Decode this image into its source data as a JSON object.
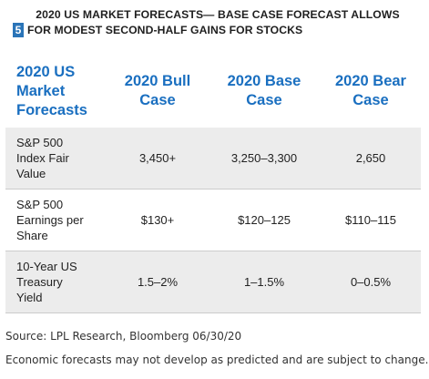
{
  "header": {
    "line1": "2020 US MARKET FORECASTS— BASE CASE FORECAST ALLOWS",
    "figure_number": "5",
    "line2": "FOR MODEST SECOND-HALF GAINS FOR STOCKS"
  },
  "table": {
    "headers": [
      "2020 US\nMarket\nForecasts",
      "2020 Bull\nCase",
      "2020 Base\nCase",
      "2020 Bear\nCase"
    ],
    "rows": [
      {
        "label": "S&P 500\nIndex Fair\nValue",
        "bull": "3,450+",
        "base": "3,250–3,300",
        "bear": "2,650"
      },
      {
        "label": "S&P 500\nEarnings per\nShare",
        "bull": "$130+",
        "base": "$120–125",
        "bear": "$110–115"
      },
      {
        "label": "10-Year US\nTreasury\nYield",
        "bull": "1.5–2%",
        "base": "1–1.5%",
        "bear": "0–0.5%"
      }
    ]
  },
  "source": "Source: LPL Research, Bloomberg 06/30/20",
  "disclaimer": "Economic forecasts may not develop as predicted and are subject to change."
}
